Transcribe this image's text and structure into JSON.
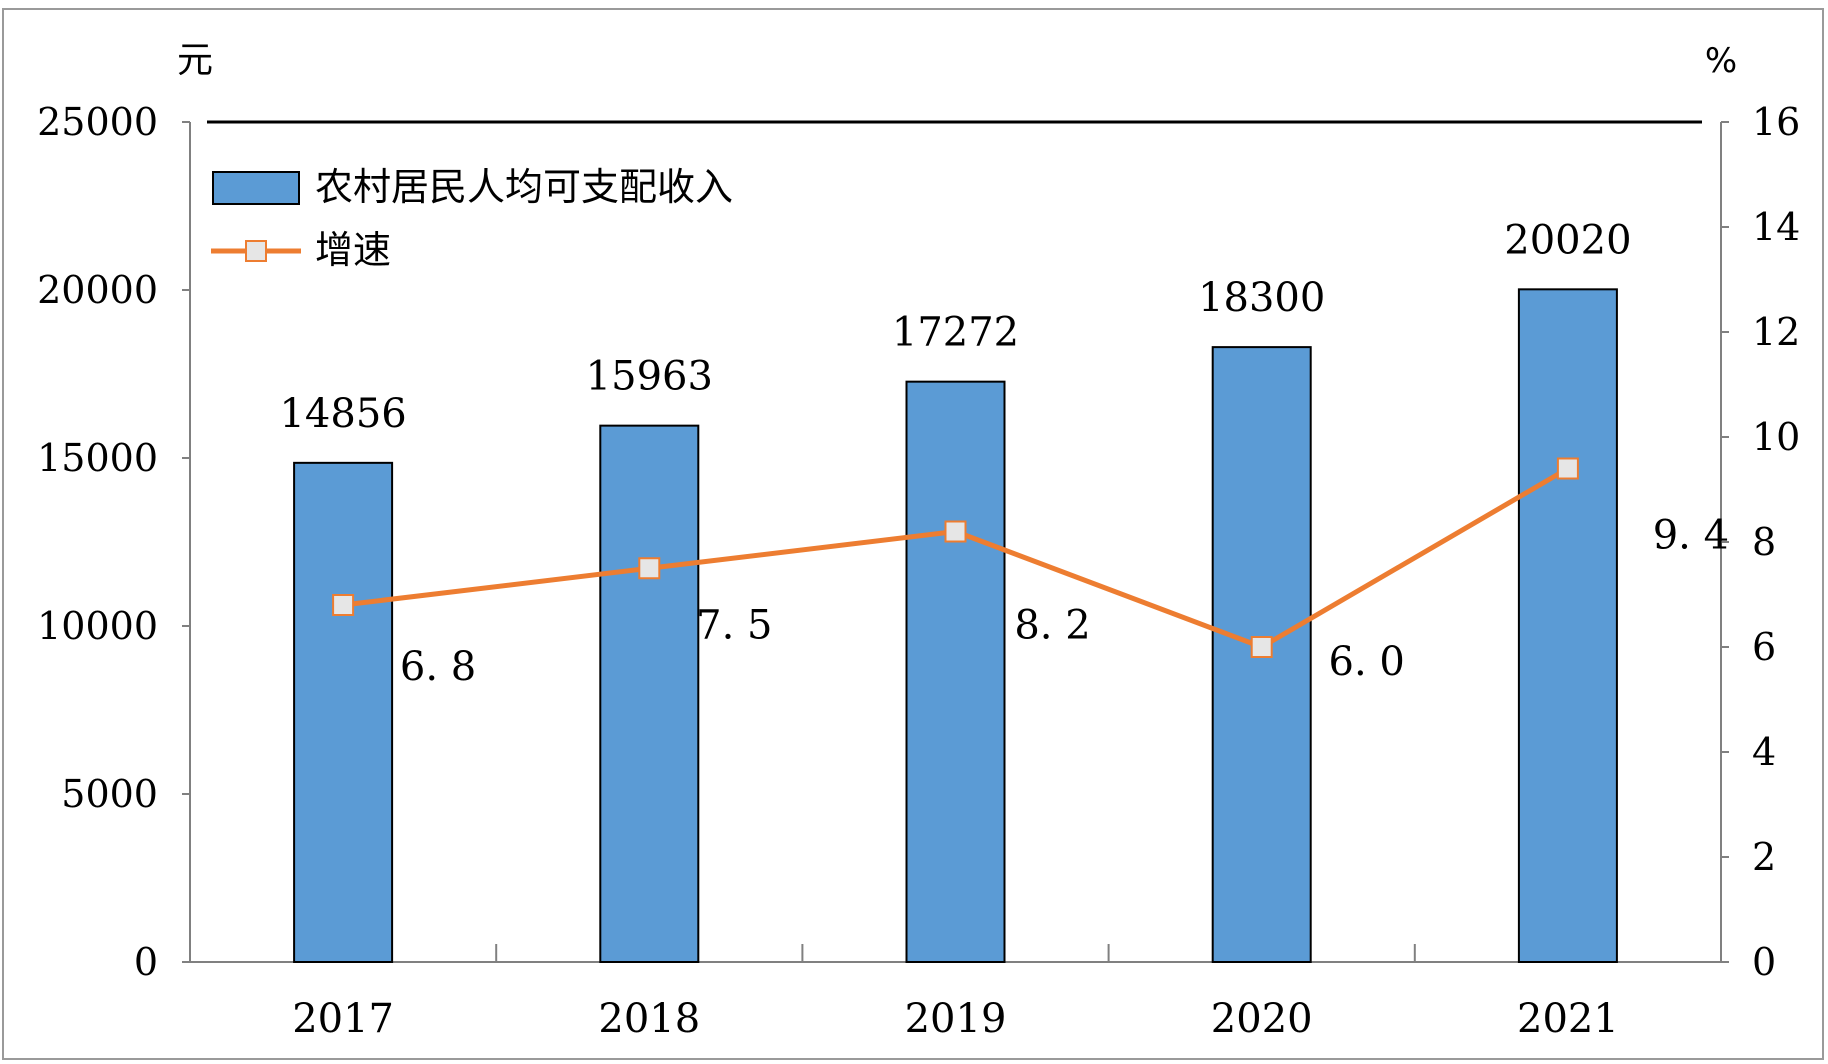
{
  "chart_data": {
    "type": "bar",
    "categories": [
      "2017",
      "2018",
      "2019",
      "2020",
      "2021"
    ],
    "series": [
      {
        "name": "农村居民人均可支配收入",
        "type": "bar",
        "axis": "left",
        "values": [
          14856,
          15963,
          17272,
          18300,
          20020
        ],
        "labels": [
          "14856",
          "15963",
          "17272",
          "18300",
          "20020"
        ]
      },
      {
        "name": "增速",
        "type": "line",
        "axis": "right",
        "values": [
          6.8,
          7.5,
          8.2,
          6.0,
          9.4
        ],
        "labels": [
          "6. 8",
          "7. 5",
          "8. 2",
          "6. 0",
          "9. 4"
        ]
      }
    ],
    "y_left": {
      "unit": "元",
      "ylim": [
        0,
        25000
      ],
      "ticks": [
        "0",
        "5000",
        "10000",
        "15000",
        "20000",
        "25000"
      ]
    },
    "y_right": {
      "unit": "%",
      "ylim": [
        0,
        16
      ],
      "ticks": [
        "0",
        "2",
        "4",
        "6",
        "8",
        "10",
        "12",
        "14",
        "16"
      ]
    },
    "legend": {
      "position": "top-left",
      "entries": [
        "农村居民人均可支配收入",
        "增速"
      ]
    },
    "grid": false,
    "colors": {
      "bar": "#5b9bd5",
      "bar_edge": "#000000",
      "line": "#ed7d31",
      "marker_fill": "#e6e6e6",
      "axis": "#808080"
    }
  }
}
